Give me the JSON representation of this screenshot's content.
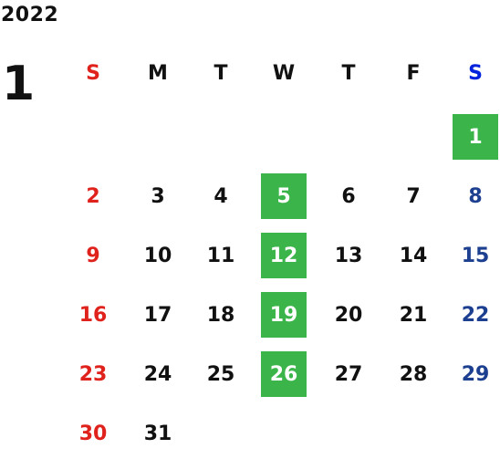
{
  "header": {
    "year": "2022",
    "month": "1"
  },
  "weekdays": [
    "S",
    "M",
    "T",
    "W",
    "T",
    "F",
    "S"
  ],
  "colors": {
    "default": "#111111",
    "sunday": "#e0221c",
    "saturday_header": "#0022dd",
    "saturday_date": "#1d3f8f",
    "highlight_bg": "#3bb54a",
    "highlight_text": "#ffffff"
  },
  "weeks": [
    [
      "",
      "",
      "",
      "",
      "",
      "",
      "1"
    ],
    [
      "2",
      "3",
      "4",
      "5",
      "6",
      "7",
      "8"
    ],
    [
      "9",
      "10",
      "11",
      "12",
      "13",
      "14",
      "15"
    ],
    [
      "16",
      "17",
      "18",
      "19",
      "20",
      "21",
      "22"
    ],
    [
      "23",
      "24",
      "25",
      "26",
      "27",
      "28",
      "29"
    ],
    [
      "30",
      "31",
      "",
      "",
      "",
      "",
      ""
    ]
  ],
  "highlighted_days": [
    "1",
    "5",
    "12",
    "19",
    "26"
  ]
}
